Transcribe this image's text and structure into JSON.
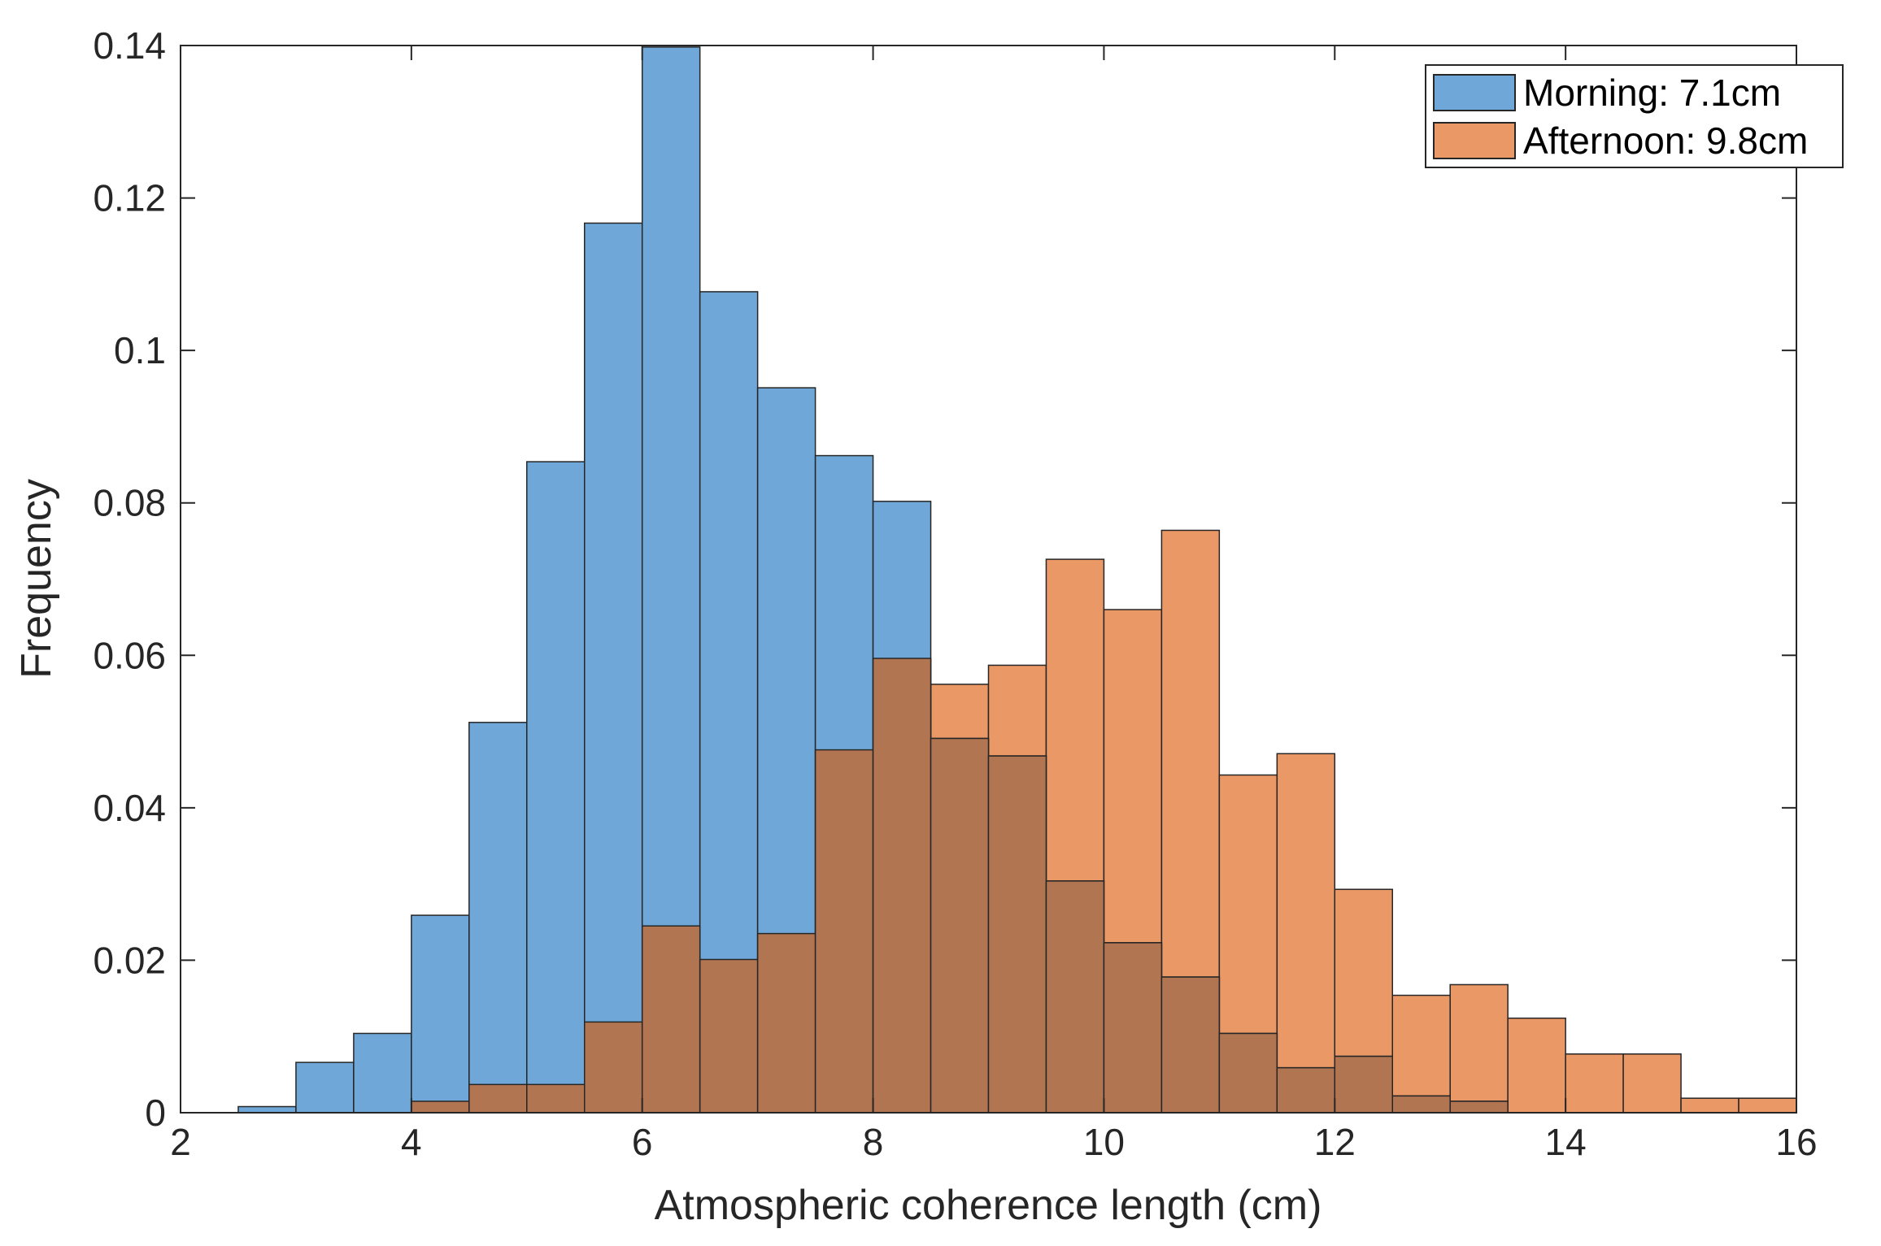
{
  "chart_data": {
    "type": "bar",
    "title": "",
    "xlabel": "Atmospheric coherence length (cm)",
    "ylabel": "Frequency",
    "xlim": [
      2,
      16
    ],
    "ylim": [
      0,
      0.14
    ],
    "xticks": [
      2,
      4,
      6,
      8,
      10,
      12,
      14,
      16
    ],
    "xtick_labels": [
      "2",
      "4",
      "6",
      "8",
      "10",
      "12",
      "14",
      "16"
    ],
    "yticks": [
      0,
      0.02,
      0.04,
      0.06,
      0.08,
      0.1,
      0.12,
      0.14
    ],
    "ytick_labels": [
      "0",
      "0.02",
      "0.04",
      "0.06",
      "0.08",
      "0.1",
      "0.12",
      "0.14"
    ],
    "grid": false,
    "legend_position": "top-right",
    "bin_width": 0.5,
    "overlap_color": "#b27552",
    "edge_color": "#262626",
    "series": [
      {
        "name": "Morning: 7.1cm",
        "color": "#6fa8d8",
        "bin_starts": [
          2.5,
          3,
          3.5,
          4,
          4.5,
          5,
          5.5,
          6,
          6.5,
          7,
          7.5,
          8,
          8.5,
          9,
          9.5,
          10,
          10.5,
          11,
          11.5,
          12,
          12.5,
          13
        ],
        "values": [
          0.0008,
          0.0066,
          0.0104,
          0.0259,
          0.0512,
          0.0854,
          0.1167,
          0.1398,
          0.1077,
          0.0951,
          0.0862,
          0.0802,
          0.0491,
          0.0468,
          0.0304,
          0.0223,
          0.0178,
          0.0104,
          0.0059,
          0.0074,
          0.0022,
          0.0015
        ]
      },
      {
        "name": "Afternoon: 9.8cm",
        "color": "#eb9867",
        "bin_starts": [
          4,
          4.5,
          5,
          5.5,
          6,
          6.5,
          7,
          7.5,
          8,
          8.5,
          9,
          9.5,
          10,
          10.5,
          11,
          11.5,
          12,
          12.5,
          13,
          13.5,
          14,
          14.5,
          15,
          15.5
        ],
        "values": [
          0.0015,
          0.0037,
          0.0037,
          0.0119,
          0.0245,
          0.0201,
          0.0235,
          0.0476,
          0.0596,
          0.0562,
          0.0587,
          0.0726,
          0.066,
          0.0764,
          0.0443,
          0.0471,
          0.0293,
          0.0154,
          0.0168,
          0.0124,
          0.0077,
          0.0077,
          0.0019,
          0.0019
        ]
      }
    ]
  }
}
